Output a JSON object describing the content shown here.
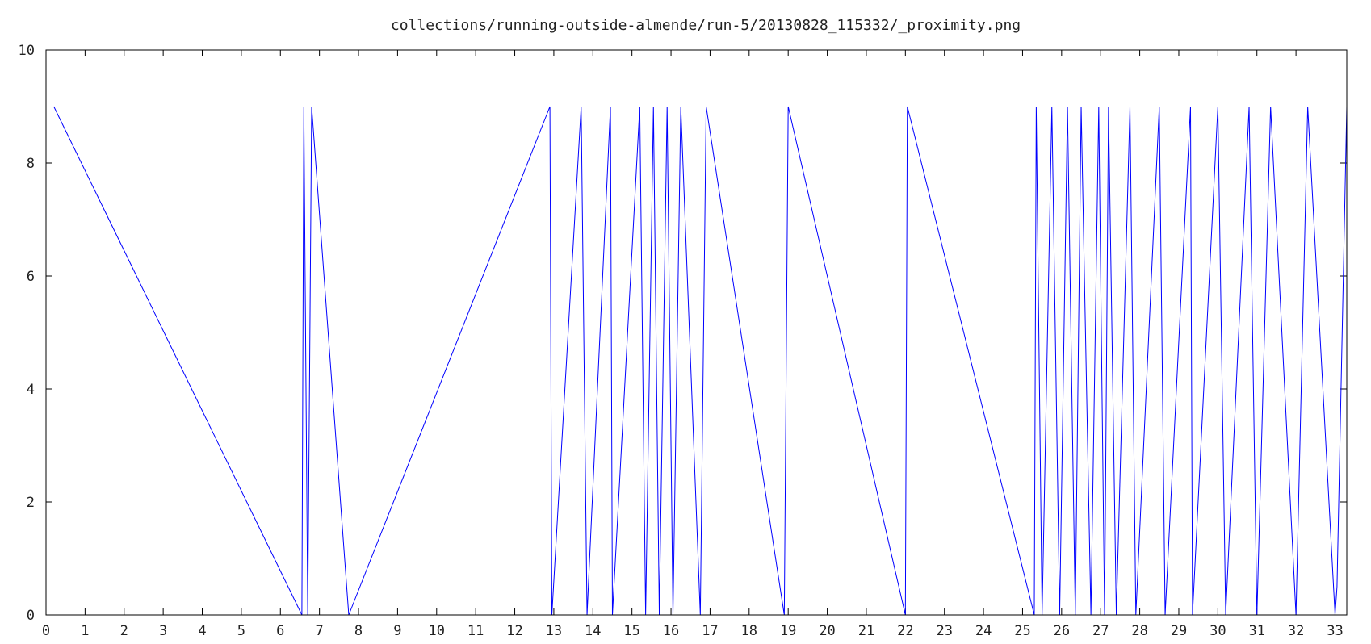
{
  "chart_data": {
    "type": "line",
    "title": "collections/running-outside-almende/run-5/20130828_115332/_proximity.png",
    "xlabel": "",
    "ylabel": "",
    "xlim": [
      0,
      33.3
    ],
    "ylim": [
      0,
      10
    ],
    "x_ticks": [
      0,
      1,
      2,
      3,
      4,
      5,
      6,
      7,
      8,
      9,
      10,
      11,
      12,
      13,
      14,
      15,
      16,
      17,
      18,
      19,
      20,
      21,
      22,
      23,
      24,
      25,
      26,
      27,
      28,
      29,
      30,
      31,
      32,
      33
    ],
    "y_ticks": [
      0,
      2,
      4,
      6,
      8,
      10
    ],
    "grid": false,
    "legend": "none",
    "series": [
      {
        "color": "#0000ff",
        "points": [
          [
            0.2,
            9
          ],
          [
            6.55,
            0
          ],
          [
            6.6,
            9
          ],
          [
            6.7,
            0
          ],
          [
            6.8,
            9
          ],
          [
            7.75,
            0
          ],
          [
            12.9,
            9
          ],
          [
            12.95,
            0
          ],
          [
            13.7,
            9
          ],
          [
            13.85,
            0
          ],
          [
            14.45,
            9
          ],
          [
            14.5,
            0
          ],
          [
            15.2,
            9
          ],
          [
            15.35,
            0
          ],
          [
            15.55,
            9
          ],
          [
            15.7,
            0
          ],
          [
            15.9,
            9
          ],
          [
            16.05,
            0
          ],
          [
            16.25,
            9
          ],
          [
            16.75,
            0
          ],
          [
            16.9,
            9
          ],
          [
            18.9,
            0
          ],
          [
            19.0,
            9
          ],
          [
            22.0,
            0
          ],
          [
            22.05,
            9
          ],
          [
            25.3,
            0
          ],
          [
            25.35,
            9
          ],
          [
            25.5,
            0
          ],
          [
            25.75,
            9
          ],
          [
            25.95,
            0
          ],
          [
            26.15,
            9
          ],
          [
            26.35,
            0
          ],
          [
            26.5,
            9
          ],
          [
            26.75,
            0
          ],
          [
            26.95,
            9
          ],
          [
            27.1,
            0
          ],
          [
            27.2,
            9
          ],
          [
            27.4,
            0
          ],
          [
            27.75,
            9
          ],
          [
            27.9,
            0
          ],
          [
            28.5,
            9
          ],
          [
            28.65,
            0
          ],
          [
            29.3,
            9
          ],
          [
            29.35,
            0
          ],
          [
            30.0,
            9
          ],
          [
            30.2,
            0
          ],
          [
            30.8,
            9
          ],
          [
            31.0,
            0
          ],
          [
            31.35,
            9
          ],
          [
            32.0,
            0
          ],
          [
            32.3,
            9
          ],
          [
            33.0,
            0
          ],
          [
            33.05,
            0.5
          ],
          [
            33.3,
            9
          ]
        ]
      },
      {
        "color": "#cc0000",
        "points": [
          [
            0,
            0
          ],
          [
            33.3,
            0
          ]
        ]
      }
    ]
  }
}
